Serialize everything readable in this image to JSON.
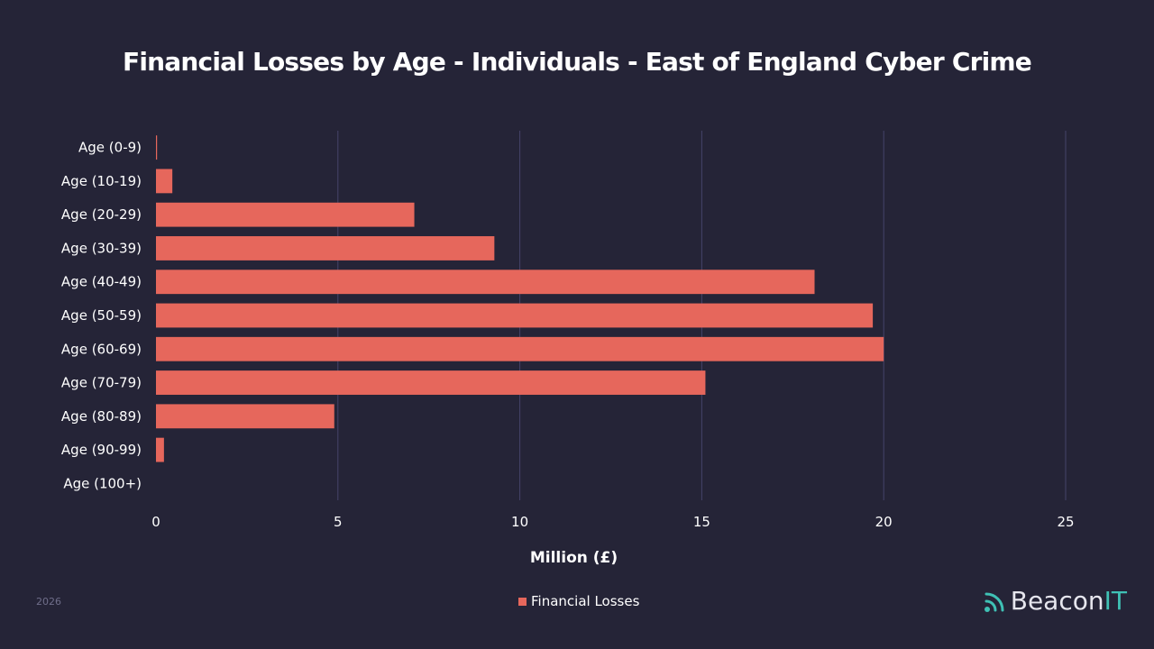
{
  "title": "Financial Losses by Age - Individuals - East of England Cyber Crime",
  "footer": {
    "year": "2026",
    "logo_text": "Beacon",
    "logo_accent": "IT",
    "logo_icon": "signal-waves-icon"
  },
  "colors": {
    "background": "#252437",
    "bar": "#e6675c",
    "grid": "#45446a",
    "logo_accent": "#3fc1b5"
  },
  "chart_data": {
    "type": "bar",
    "orientation": "horizontal",
    "title": "Financial Losses by Age - Individuals - East of England Cyber Crime",
    "xlabel": "Million (£)",
    "ylabel": "",
    "xlim": [
      0,
      25
    ],
    "xticks": [
      "0",
      "5",
      "10",
      "15",
      "20",
      "25"
    ],
    "grid": "vertical",
    "legend_position": "bottom-center",
    "categories": [
      "Age (0-9)",
      "Age (10-19)",
      "Age (20-29)",
      "Age (30-39)",
      "Age (40-49)",
      "Age (50-59)",
      "Age (60-69)",
      "Age (70-79)",
      "Age (80-89)",
      "Age (90-99)",
      "Age (100+)"
    ],
    "series": [
      {
        "name": "Financial Losses",
        "color": "#e6675c",
        "values": [
          0.03,
          0.45,
          7.1,
          9.3,
          18.1,
          19.7,
          20.0,
          15.1,
          4.9,
          0.22,
          0
        ]
      }
    ]
  }
}
